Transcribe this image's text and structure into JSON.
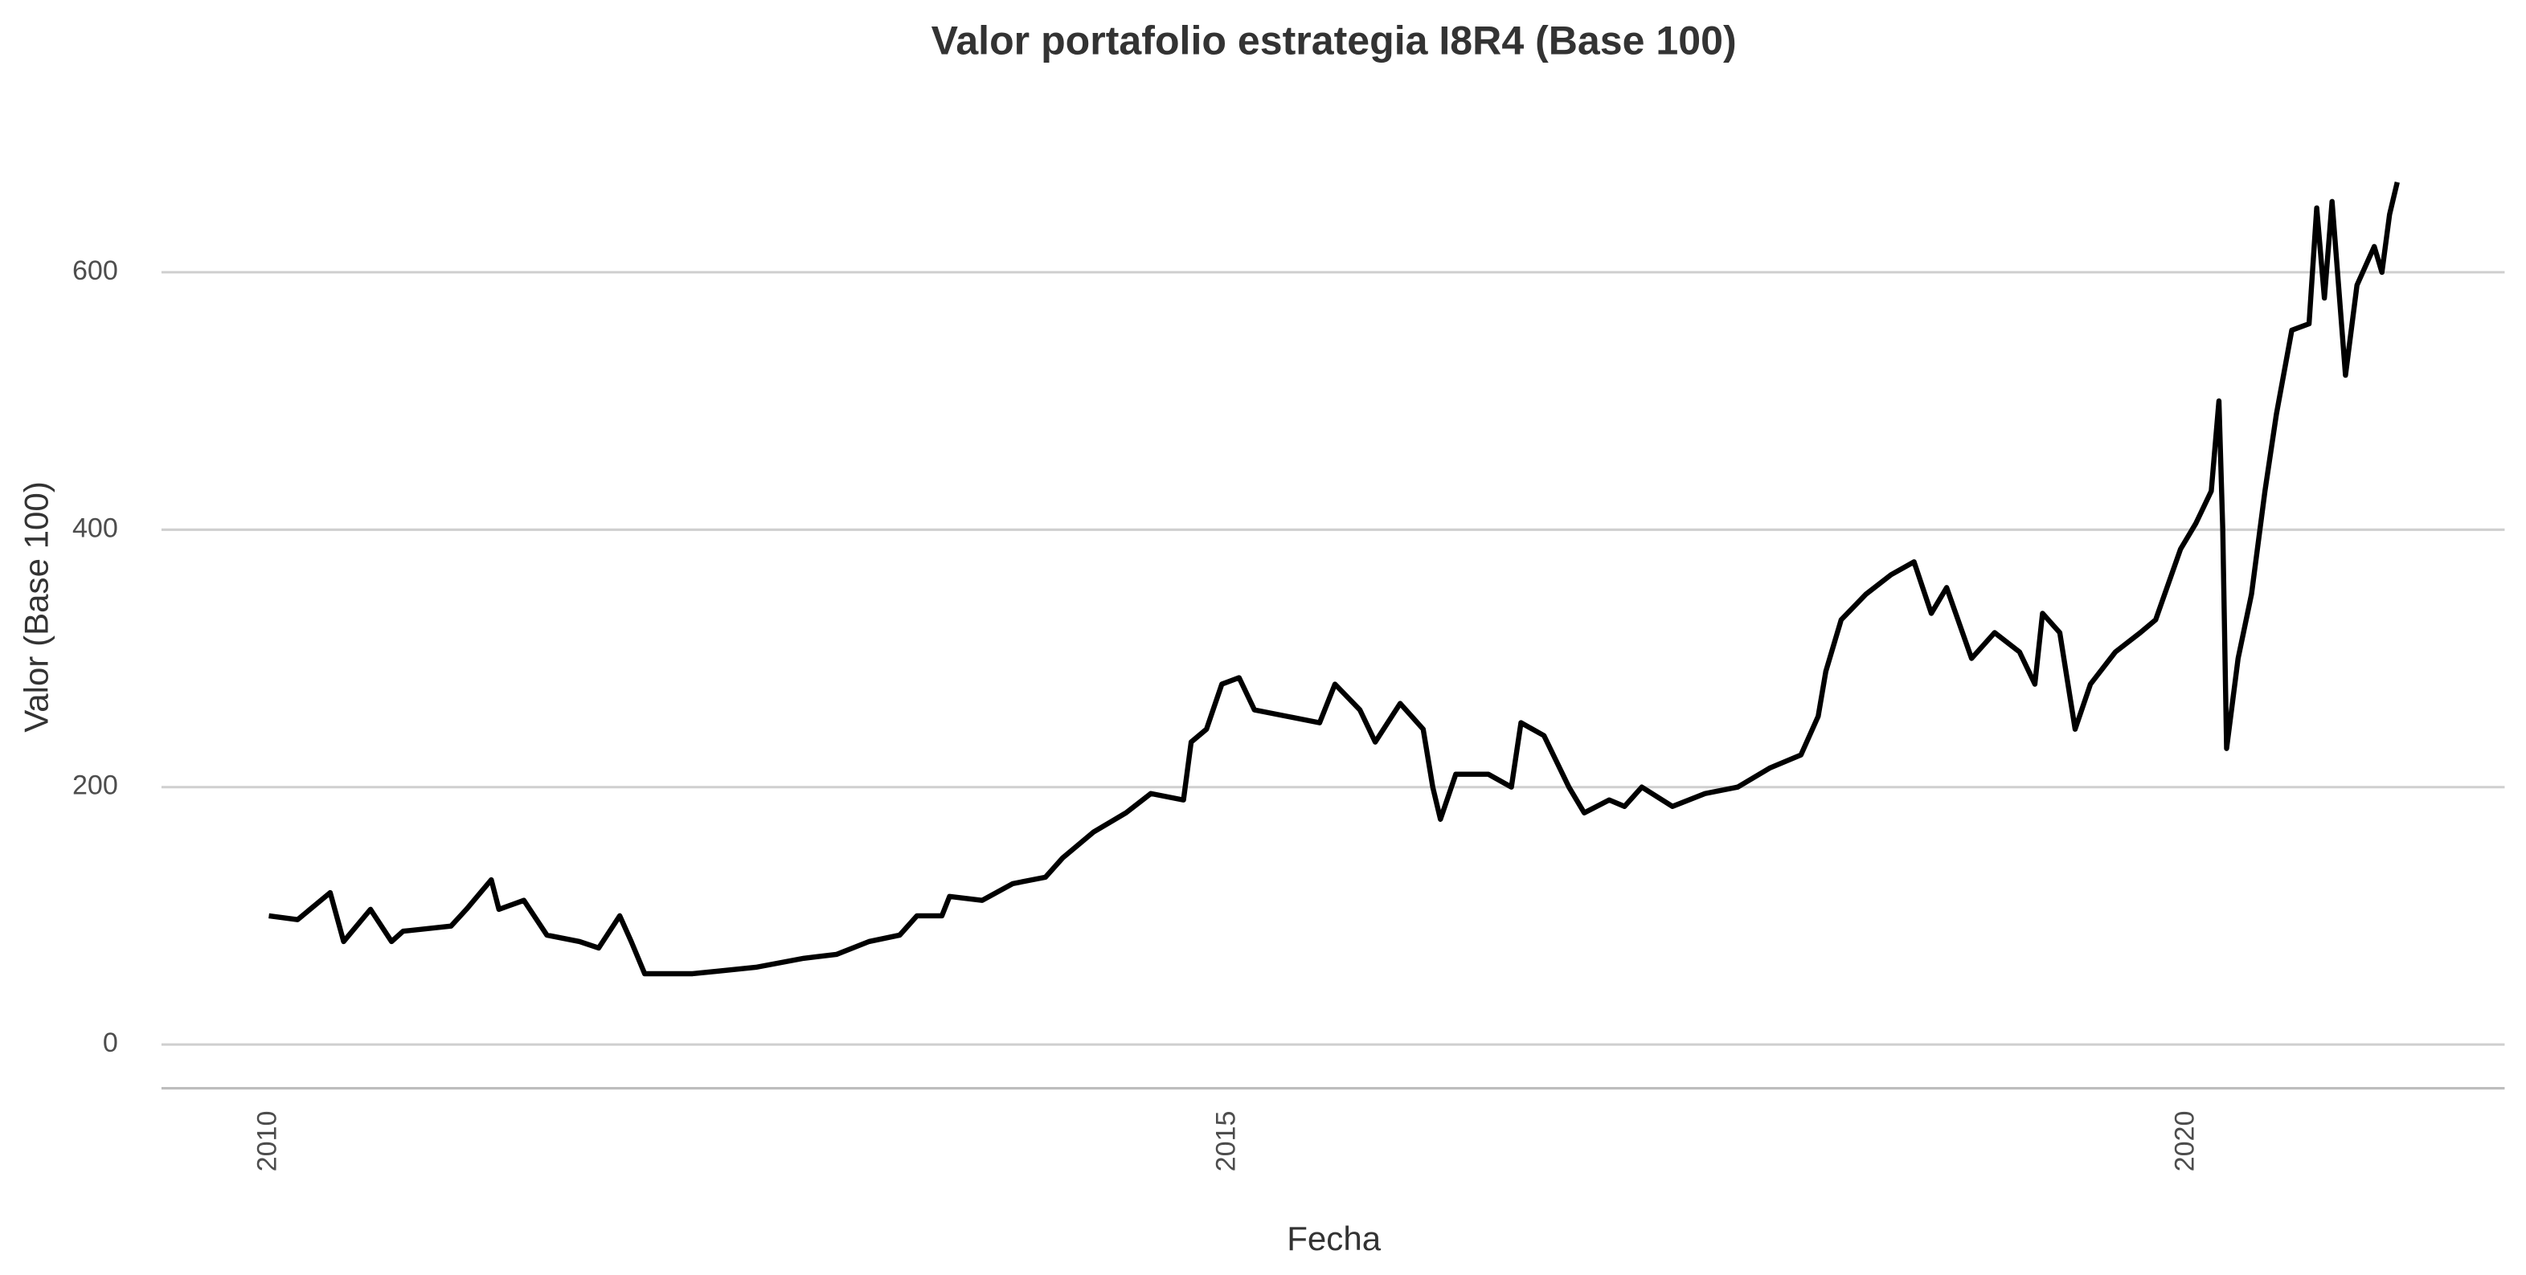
{
  "chart_data": {
    "type": "line",
    "title": "Valor portafolio estrategia I8R4 (Base 100)",
    "x_label": "Fecha",
    "y_label": "Valor (Base 100)",
    "xlim": [
      2009.44,
      2021.66
    ],
    "xticks": [
      2010,
      2015,
      2020
    ],
    "ylim": [
      -34,
      714
    ],
    "yticks": [
      0,
      200,
      400,
      600
    ],
    "grid": true,
    "series": [
      {
        "color": "#000000",
        "x": [
          2010.0,
          2010.15,
          2010.32,
          2010.39,
          2010.53,
          2010.64,
          2010.7,
          2010.95,
          2011.03,
          2011.16,
          2011.2,
          2011.33,
          2011.45,
          2011.62,
          2011.72,
          2011.83,
          2011.89,
          2011.96,
          2012.21,
          2012.54,
          2012.79,
          2012.96,
          2013.13,
          2013.29,
          2013.38,
          2013.51,
          2013.55,
          2013.72,
          2013.88,
          2014.05,
          2014.14,
          2014.3,
          2014.47,
          2014.6,
          2014.77,
          2014.81,
          2014.89,
          2014.97,
          2015.06,
          2015.14,
          2015.31,
          2015.48,
          2015.56,
          2015.69,
          2015.77,
          2015.9,
          2016.02,
          2016.07,
          2016.11,
          2016.19,
          2016.36,
          2016.48,
          2016.53,
          2016.65,
          2016.78,
          2016.86,
          2016.99,
          2017.07,
          2017.16,
          2017.32,
          2017.49,
          2017.66,
          2017.83,
          2017.99,
          2018.08,
          2018.12,
          2018.2,
          2018.33,
          2018.46,
          2018.58,
          2018.67,
          2018.75,
          2018.88,
          2019.0,
          2019.13,
          2019.21,
          2019.25,
          2019.34,
          2019.42,
          2019.5,
          2019.63,
          2019.76,
          2019.84,
          2019.97,
          2020.05,
          2020.13,
          2020.17,
          2020.19,
          2020.21,
          2020.27,
          2020.34,
          2020.41,
          2020.47,
          2020.55,
          2020.64,
          2020.68,
          2020.72,
          2020.76,
          2020.83,
          2020.89,
          2020.98,
          2021.02,
          2021.06,
          2021.1
        ],
        "values": [
          100,
          97,
          118,
          80,
          105,
          80,
          88,
          92,
          105,
          128,
          105,
          112,
          85,
          80,
          75,
          100,
          80,
          55,
          55,
          60,
          67,
          70,
          80,
          85,
          100,
          100,
          115,
          112,
          125,
          130,
          145,
          165,
          180,
          195,
          190,
          235,
          245,
          280,
          285,
          260,
          255,
          250,
          280,
          260,
          235,
          265,
          245,
          200,
          175,
          210,
          210,
          200,
          250,
          240,
          200,
          180,
          190,
          185,
          200,
          185,
          195,
          200,
          215,
          225,
          255,
          290,
          330,
          350,
          365,
          375,
          335,
          355,
          300,
          320,
          305,
          280,
          335,
          320,
          245,
          280,
          305,
          320,
          330,
          385,
          405,
          430,
          500,
          400,
          230,
          300,
          350,
          430,
          490,
          555,
          560,
          650,
          580,
          655,
          520,
          590,
          620,
          600,
          645,
          670
        ]
      }
    ]
  }
}
